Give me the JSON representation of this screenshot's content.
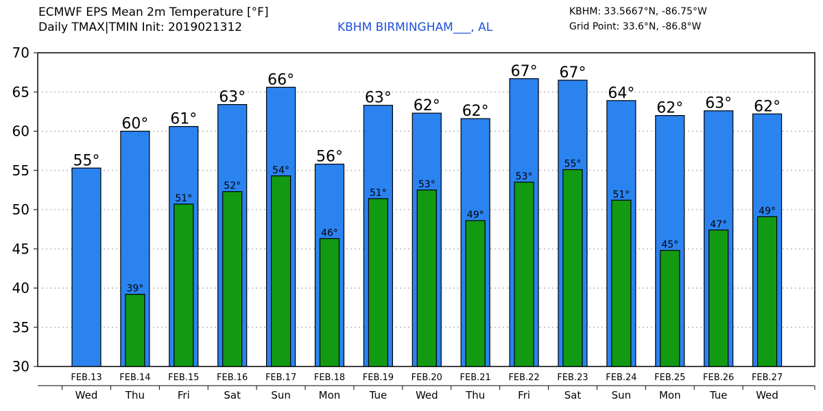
{
  "header": {
    "title_line1": "ECMWF EPS Mean 2m Temperature [°F]",
    "title_line2": "Daily TMAX|TMIN Init: 2019021312",
    "station": "KBHM BIRMINGHAM___, AL",
    "coords": "KBHM: 33.5667°N, -86.75°W",
    "grid_point": "Grid Point: 33.6°N, -86.8°W"
  },
  "colors": {
    "tmax": "#2b83f0",
    "tmin": "#129a12"
  },
  "chart_data": {
    "type": "bar",
    "title": "ECMWF EPS Mean 2m Temperature [°F]",
    "subtitle": "Daily TMAX|TMIN Init: 2019021312",
    "categories": [
      "FEB.13",
      "FEB.14",
      "FEB.15",
      "FEB.16",
      "FEB.17",
      "FEB.18",
      "FEB.19",
      "FEB.20",
      "FEB.21",
      "FEB.22",
      "FEB.23",
      "FEB.24",
      "FEB.25",
      "FEB.26",
      "FEB.27"
    ],
    "days": [
      "Wed",
      "Thu",
      "Fri",
      "Sat",
      "Sun",
      "Mon",
      "Tue",
      "Wed",
      "Thu",
      "Fri",
      "Sat",
      "Sun",
      "Mon",
      "Tue",
      "Wed"
    ],
    "series": [
      {
        "name": "TMAX",
        "values": [
          55.3,
          60.0,
          60.6,
          63.4,
          65.6,
          55.8,
          63.3,
          62.3,
          61.6,
          66.7,
          66.5,
          63.9,
          62.0,
          62.6,
          62.2
        ],
        "labels": [
          "55°",
          "60°",
          "61°",
          "63°",
          "66°",
          "56°",
          "63°",
          "62°",
          "62°",
          "67°",
          "67°",
          "64°",
          "62°",
          "63°",
          "62°"
        ]
      },
      {
        "name": "TMIN",
        "values": [
          null,
          39.2,
          50.7,
          52.3,
          54.3,
          46.3,
          51.4,
          52.5,
          48.6,
          53.5,
          55.1,
          51.2,
          44.8,
          47.4,
          49.1
        ],
        "labels": [
          "",
          "39°",
          "51°",
          "52°",
          "54°",
          "46°",
          "51°",
          "53°",
          "49°",
          "53°",
          "55°",
          "51°",
          "45°",
          "47°",
          "49°"
        ]
      }
    ],
    "ylim": [
      30,
      70
    ],
    "yticks": [
      "30",
      "35",
      "40",
      "45",
      "50",
      "55",
      "60",
      "65",
      "70"
    ],
    "grid": true
  }
}
